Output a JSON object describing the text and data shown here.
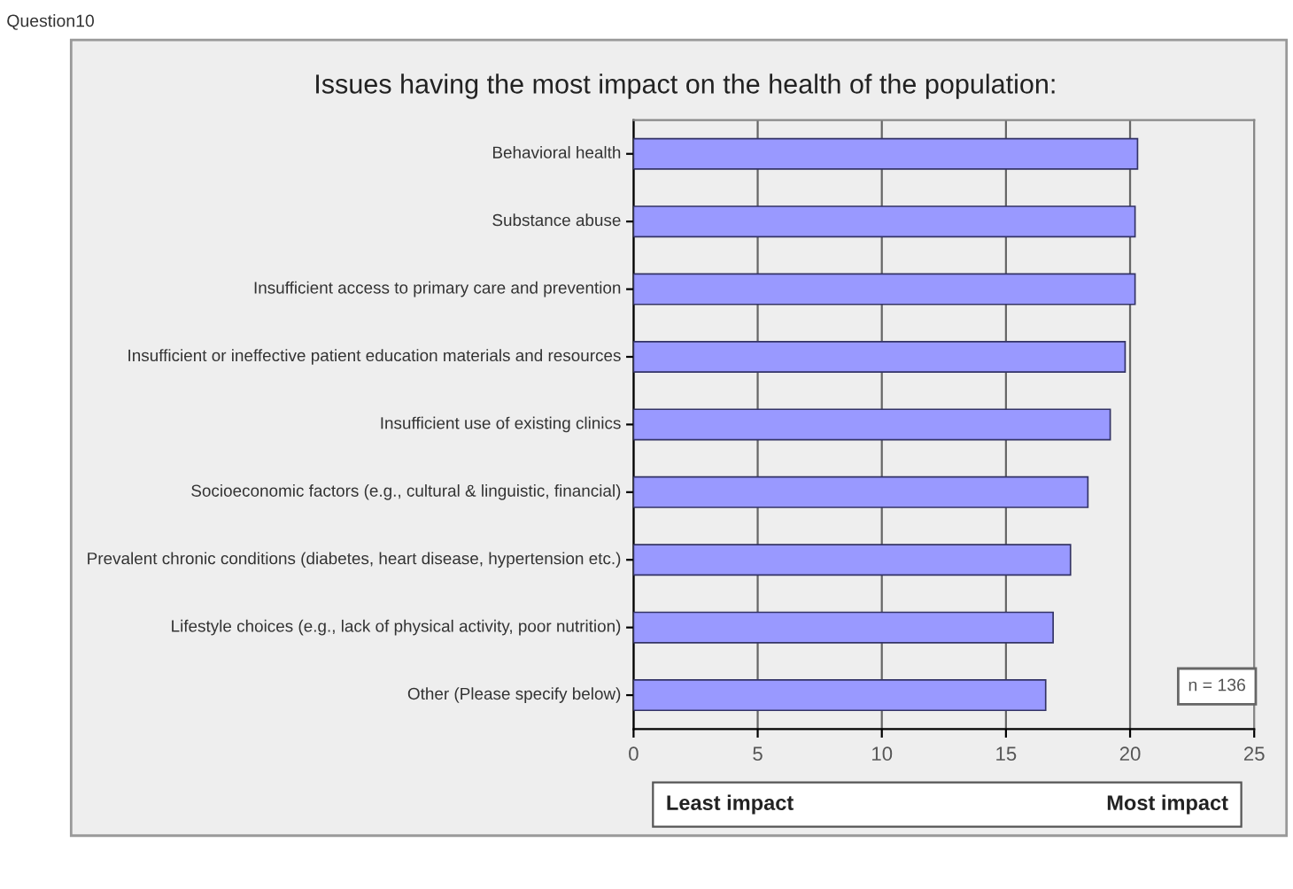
{
  "chart_data": {
    "type": "bar",
    "orientation": "horizontal",
    "title": "Issues having the most impact on the health of the population:",
    "categories": [
      "Behavioral health",
      "Substance abuse",
      "Insufficient access to primary care and prevention",
      "Insufficient or ineffective patient education materials and resources",
      "Insufficient use of existing clinics",
      "Socioeconomic factors (e.g., cultural & linguistic, financial)",
      "Prevalent chronic conditions (diabetes, heart disease, hypertension etc.)",
      "Lifestyle choices (e.g., lack of physical activity, poor nutrition)",
      "Other (Please specify below)"
    ],
    "values": [
      20.3,
      20.2,
      20.2,
      19.8,
      19.2,
      18.3,
      17.6,
      16.9,
      16.6
    ],
    "color": "#9999ff",
    "xlim": [
      0,
      25
    ],
    "xticks": [
      0,
      5,
      10,
      15,
      20,
      25
    ],
    "grid": "x",
    "annotations": [
      "Question10",
      "n = 136",
      "Least impact",
      "Most impact"
    ]
  }
}
